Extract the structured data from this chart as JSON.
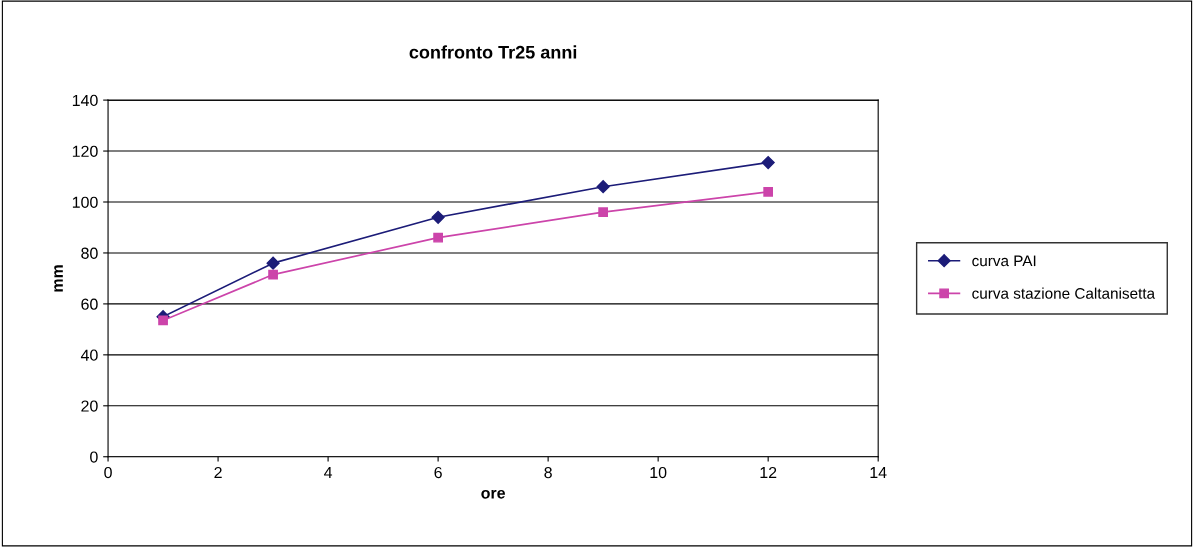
{
  "chart_data": {
    "type": "line",
    "title": "confronto Tr25 anni",
    "xlabel": "ore",
    "ylabel": "mm",
    "x": [
      1,
      3,
      6,
      9,
      12
    ],
    "series": [
      {
        "name": "curva PAI",
        "color": "#1c1c78",
        "marker": "diamond",
        "values": [
          55,
          76,
          94,
          106,
          115.5
        ]
      },
      {
        "name": "curva stazione Caltanisetta",
        "color": "#cc44aa",
        "marker": "square",
        "values": [
          53.5,
          71.5,
          86,
          96,
          104
        ]
      }
    ],
    "xlim": [
      0,
      14
    ],
    "xticks": [
      0,
      2,
      4,
      6,
      8,
      10,
      12,
      14
    ],
    "ylim": [
      0,
      140
    ],
    "yticks": [
      0,
      20,
      40,
      60,
      80,
      100,
      120,
      140
    ],
    "grid": "y",
    "legend": "right",
    "line_style": "solid"
  }
}
